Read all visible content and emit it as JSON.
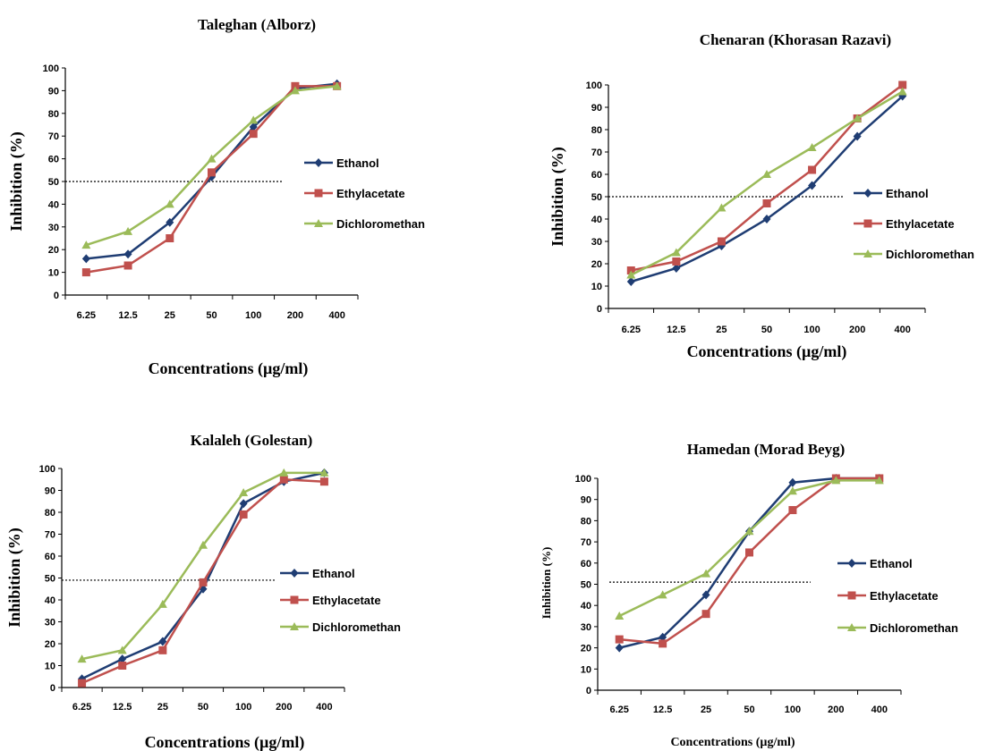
{
  "colors": {
    "Ethanol": "#1F3D73",
    "Ethylacetate": "#C0504D",
    "Dichloromethan": "#9BBB59"
  },
  "markers": {
    "Ethanol": "diamond",
    "Ethylacetate": "square",
    "Dichloromethan": "triangle"
  },
  "chart_data": [
    {
      "type": "line",
      "title": "Taleghan (Alborz)",
      "xlabel": "Concentrations (µg/ml)",
      "ylabel": "Inhibition (%)",
      "categories": [
        "6.25",
        "12.5",
        "25",
        "50",
        "100",
        "200",
        "400"
      ],
      "ylim": [
        0,
        100
      ],
      "yticks": [
        "0",
        "10",
        "20",
        "30",
        "40",
        "50",
        "60",
        "70",
        "80",
        "90",
        "100"
      ],
      "reference_y": 50,
      "legend": "right",
      "series": [
        {
          "name": "Ethanol",
          "values": [
            16,
            18,
            32,
            52,
            74,
            91,
            93
          ]
        },
        {
          "name": "Ethylacetate",
          "values": [
            10,
            13,
            25,
            54,
            71,
            92,
            92
          ]
        },
        {
          "name": "Dichloromethan",
          "values": [
            22,
            28,
            40,
            60,
            77,
            90,
            92
          ]
        }
      ]
    },
    {
      "type": "line",
      "title": "Chenaran (Khorasan Razavi)",
      "xlabel": "Concentrations (µg/ml)",
      "ylabel": "Inhibition (%)",
      "categories": [
        "6.25",
        "12.5",
        "25",
        "50",
        "100",
        "200",
        "400"
      ],
      "ylim": [
        0,
        100
      ],
      "yticks": [
        "0",
        "10",
        "20",
        "30",
        "40",
        "50",
        "60",
        "70",
        "80",
        "90",
        "100"
      ],
      "reference_y": 50,
      "legend": "right",
      "series": [
        {
          "name": "Ethanol",
          "values": [
            12,
            18,
            28,
            40,
            55,
            77,
            95
          ]
        },
        {
          "name": "Ethylacetate",
          "values": [
            17,
            21,
            30,
            47,
            62,
            85,
            100
          ]
        },
        {
          "name": "Dichloromethan",
          "values": [
            15,
            25,
            45,
            60,
            72,
            85,
            97
          ]
        }
      ]
    },
    {
      "type": "line",
      "title": "Kalaleh (Golestan)",
      "xlabel": "Concentrations (µg/ml)",
      "ylabel": "Inhibition (%)",
      "categories": [
        "6.25",
        "12.5",
        "25",
        "50",
        "100",
        "200",
        "400"
      ],
      "ylim": [
        0,
        100
      ],
      "yticks": [
        "0",
        "10",
        "20",
        "30",
        "40",
        "50",
        "60",
        "70",
        "80",
        "90",
        "100"
      ],
      "reference_y": 49,
      "legend": "right",
      "series": [
        {
          "name": "Ethanol",
          "values": [
            4,
            13,
            21,
            45,
            84,
            94,
            98
          ]
        },
        {
          "name": "Ethylacetate",
          "values": [
            2,
            10,
            17,
            48,
            79,
            95,
            94
          ]
        },
        {
          "name": "Dichloromethan",
          "values": [
            13,
            17,
            38,
            65,
            89,
            98,
            98
          ]
        }
      ]
    },
    {
      "type": "line",
      "title": "Hamedan (Morad Beyg)",
      "xlabel": "Concentrations (µg/ml)",
      "ylabel": "Inhibition (%)",
      "categories": [
        "6.25",
        "12.5",
        "25",
        "50",
        "100",
        "200",
        "400"
      ],
      "ylim": [
        0,
        100
      ],
      "yticks": [
        "0",
        "10",
        "20",
        "30",
        "40",
        "50",
        "60",
        "70",
        "80",
        "90",
        "100"
      ],
      "reference_y": 51,
      "legend": "right",
      "series": [
        {
          "name": "Ethanol",
          "values": [
            20,
            25,
            45,
            75,
            98,
            100,
            100
          ]
        },
        {
          "name": "Ethylacetate",
          "values": [
            24,
            22,
            36,
            65,
            85,
            100,
            100
          ]
        },
        {
          "name": "Dichloromethan",
          "values": [
            35,
            45,
            55,
            75,
            94,
            99,
            99
          ]
        }
      ]
    }
  ]
}
